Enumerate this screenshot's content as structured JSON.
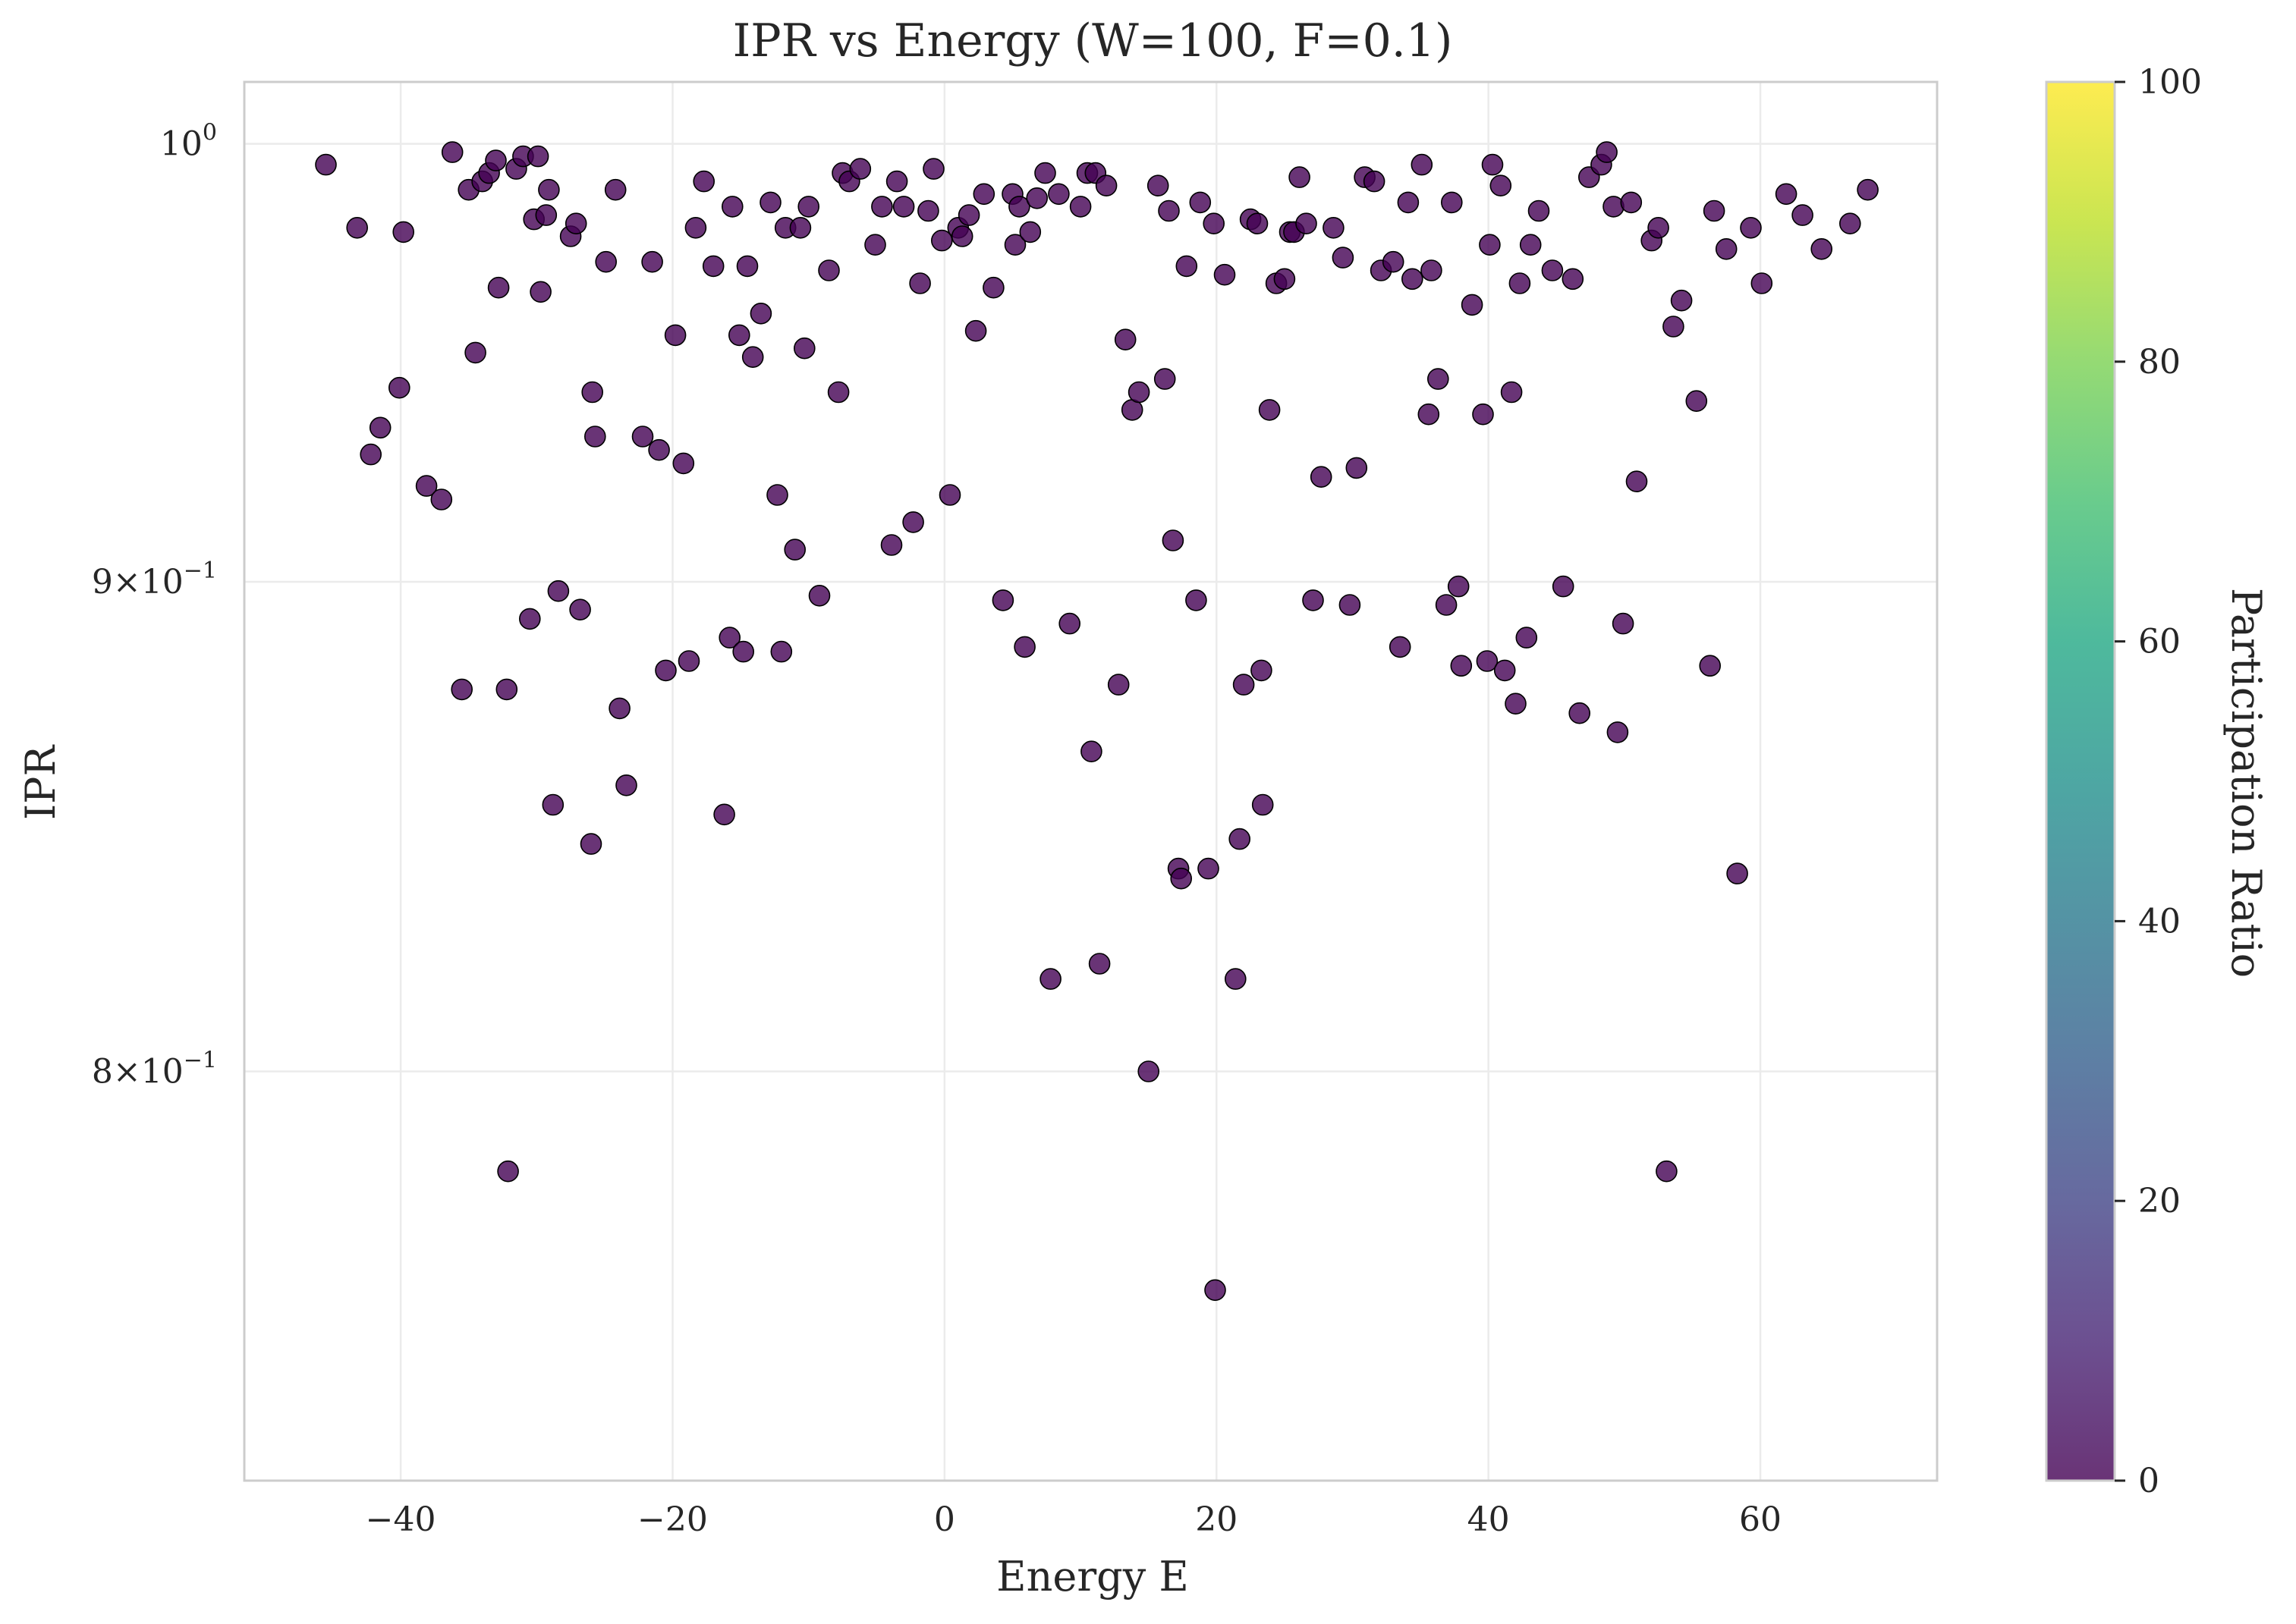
{
  "chart_data": {
    "type": "scatter",
    "title": "IPR vs Energy (W=100, F=0.1)",
    "xlabel": "Energy E",
    "ylabel": "IPR",
    "xlim": [
      -51.5,
      73.0
    ],
    "ylim": [
      0.725,
      1.015
    ],
    "yscale": "log",
    "x_ticks": [
      -40,
      -20,
      0,
      20,
      40,
      60
    ],
    "x_tick_labels": [
      "−40",
      "−20",
      "0",
      "20",
      "40",
      "60"
    ],
    "y_ticks": [
      {
        "value": 1.0,
        "mantissa": "",
        "exponent": "0",
        "base": "10"
      },
      {
        "value": 0.9,
        "mantissa": "9",
        "exponent": "−1",
        "base": "10"
      },
      {
        "value": 0.8,
        "mantissa": "8",
        "exponent": "−1",
        "base": "10"
      }
    ],
    "grid": true,
    "colorbar": {
      "label": "Participation Ratio",
      "range": [
        0,
        100
      ],
      "ticks": [
        0,
        20,
        40,
        60,
        80,
        100
      ],
      "colormap": "viridis"
    },
    "marker_color": "#440154",
    "points": [
      [
        -45.5,
        0.995
      ],
      [
        -43.2,
        0.98
      ],
      [
        -39.8,
        0.979
      ],
      [
        -40.1,
        0.943
      ],
      [
        -41.5,
        0.934
      ],
      [
        -42.2,
        0.928
      ],
      [
        -38.1,
        0.921
      ],
      [
        -37.0,
        0.918
      ],
      [
        -36.2,
        0.998
      ],
      [
        -35.5,
        0.877
      ],
      [
        -35.0,
        0.989
      ],
      [
        -34.5,
        0.951
      ],
      [
        -34.0,
        0.991
      ],
      [
        -33.5,
        0.993
      ],
      [
        -33.0,
        0.996
      ],
      [
        -32.8,
        0.966
      ],
      [
        -32.2,
        0.877
      ],
      [
        -32.1,
        0.781
      ],
      [
        -31.5,
        0.994
      ],
      [
        -31.0,
        0.997
      ],
      [
        -30.5,
        0.892
      ],
      [
        -30.2,
        0.982
      ],
      [
        -29.9,
        0.997
      ],
      [
        -29.7,
        0.965
      ],
      [
        -29.3,
        0.983
      ],
      [
        -29.1,
        0.989
      ],
      [
        -28.8,
        0.853
      ],
      [
        -28.4,
        0.898
      ],
      [
        -27.5,
        0.978
      ],
      [
        -27.1,
        0.981
      ],
      [
        -26.8,
        0.894
      ],
      [
        -25.9,
        0.942
      ],
      [
        -26.0,
        0.845
      ],
      [
        -25.7,
        0.932
      ],
      [
        -24.9,
        0.972
      ],
      [
        -24.2,
        0.989
      ],
      [
        -23.9,
        0.873
      ],
      [
        -23.4,
        0.857
      ],
      [
        -22.2,
        0.932
      ],
      [
        -21.5,
        0.972
      ],
      [
        -21.0,
        0.929
      ],
      [
        -20.5,
        0.881
      ],
      [
        -19.8,
        0.955
      ],
      [
        -19.2,
        0.926
      ],
      [
        -18.8,
        0.883
      ],
      [
        -18.3,
        0.98
      ],
      [
        -17.7,
        0.991
      ],
      [
        -17.0,
        0.971
      ],
      [
        -16.2,
        0.851
      ],
      [
        -15.8,
        0.888
      ],
      [
        -15.6,
        0.985
      ],
      [
        -15.1,
        0.955
      ],
      [
        -14.8,
        0.885
      ],
      [
        -14.5,
        0.971
      ],
      [
        -14.1,
        0.95
      ],
      [
        -13.5,
        0.96
      ],
      [
        -12.8,
        0.986
      ],
      [
        -12.3,
        0.919
      ],
      [
        -12.0,
        0.885
      ],
      [
        -11.7,
        0.98
      ],
      [
        -11.0,
        0.907
      ],
      [
        -10.6,
        0.98
      ],
      [
        -10.3,
        0.952
      ],
      [
        -10.0,
        0.985
      ],
      [
        -9.2,
        0.897
      ],
      [
        -8.5,
        0.97
      ],
      [
        -7.8,
        0.942
      ],
      [
        -7.5,
        0.993
      ],
      [
        -7.0,
        0.991
      ],
      [
        -6.2,
        0.994
      ],
      [
        -5.1,
        0.976
      ],
      [
        -4.6,
        0.985
      ],
      [
        -3.9,
        0.908
      ],
      [
        -3.5,
        0.991
      ],
      [
        -3.0,
        0.985
      ],
      [
        -2.3,
        0.913
      ],
      [
        -1.8,
        0.967
      ],
      [
        -1.2,
        0.984
      ],
      [
        -0.8,
        0.994
      ],
      [
        -0.2,
        0.977
      ],
      [
        0.4,
        0.919
      ],
      [
        1.0,
        0.98
      ],
      [
        1.3,
        0.978
      ],
      [
        1.8,
        0.983
      ],
      [
        2.3,
        0.956
      ],
      [
        2.9,
        0.988
      ],
      [
        3.6,
        0.966
      ],
      [
        4.3,
        0.896
      ],
      [
        5.0,
        0.988
      ],
      [
        5.2,
        0.976
      ],
      [
        5.5,
        0.985
      ],
      [
        5.9,
        0.886
      ],
      [
        6.3,
        0.979
      ],
      [
        6.8,
        0.987
      ],
      [
        7.4,
        0.993
      ],
      [
        7.8,
        0.818
      ],
      [
        8.4,
        0.988
      ],
      [
        9.2,
        0.891
      ],
      [
        10.0,
        0.985
      ],
      [
        10.5,
        0.993
      ],
      [
        10.8,
        0.864
      ],
      [
        11.1,
        0.993
      ],
      [
        11.4,
        0.821
      ],
      [
        11.9,
        0.99
      ],
      [
        12.8,
        0.878
      ],
      [
        13.3,
        0.954
      ],
      [
        13.8,
        0.938
      ],
      [
        14.3,
        0.942
      ],
      [
        15.0,
        0.8
      ],
      [
        15.7,
        0.99
      ],
      [
        16.2,
        0.945
      ],
      [
        16.5,
        0.984
      ],
      [
        16.8,
        0.909
      ],
      [
        17.2,
        0.84
      ],
      [
        17.4,
        0.838
      ],
      [
        17.8,
        0.971
      ],
      [
        18.5,
        0.896
      ],
      [
        18.8,
        0.986
      ],
      [
        19.4,
        0.84
      ],
      [
        19.8,
        0.981
      ],
      [
        19.9,
        0.759
      ],
      [
        20.6,
        0.969
      ],
      [
        21.4,
        0.818
      ],
      [
        21.7,
        0.846
      ],
      [
        22.0,
        0.878
      ],
      [
        22.5,
        0.982
      ],
      [
        23.0,
        0.981
      ],
      [
        23.3,
        0.881
      ],
      [
        23.4,
        0.853
      ],
      [
        23.9,
        0.938
      ],
      [
        24.4,
        0.967
      ],
      [
        25.0,
        0.968
      ],
      [
        25.4,
        0.979
      ],
      [
        25.7,
        0.979
      ],
      [
        26.1,
        0.992
      ],
      [
        26.6,
        0.981
      ],
      [
        27.1,
        0.896
      ],
      [
        27.7,
        0.923
      ],
      [
        28.6,
        0.98
      ],
      [
        29.3,
        0.973
      ],
      [
        29.8,
        0.895
      ],
      [
        30.3,
        0.925
      ],
      [
        30.9,
        0.992
      ],
      [
        31.6,
        0.991
      ],
      [
        32.1,
        0.97
      ],
      [
        33.0,
        0.972
      ],
      [
        33.5,
        0.886
      ],
      [
        34.1,
        0.986
      ],
      [
        34.4,
        0.968
      ],
      [
        35.1,
        0.995
      ],
      [
        35.6,
        0.937
      ],
      [
        35.8,
        0.97
      ],
      [
        36.3,
        0.945
      ],
      [
        36.9,
        0.895
      ],
      [
        37.3,
        0.986
      ],
      [
        37.8,
        0.899
      ],
      [
        38.0,
        0.882
      ],
      [
        38.8,
        0.962
      ],
      [
        39.6,
        0.937
      ],
      [
        39.9,
        0.883
      ],
      [
        40.1,
        0.976
      ],
      [
        40.3,
        0.995
      ],
      [
        40.9,
        0.99
      ],
      [
        41.2,
        0.881
      ],
      [
        41.7,
        0.942
      ],
      [
        42.0,
        0.874
      ],
      [
        42.3,
        0.967
      ],
      [
        42.8,
        0.888
      ],
      [
        43.1,
        0.976
      ],
      [
        43.7,
        0.984
      ],
      [
        44.7,
        0.97
      ],
      [
        45.5,
        0.899
      ],
      [
        46.2,
        0.968
      ],
      [
        46.7,
        0.872
      ],
      [
        47.4,
        0.992
      ],
      [
        48.3,
        0.995
      ],
      [
        48.7,
        0.998
      ],
      [
        49.2,
        0.985
      ],
      [
        49.5,
        0.868
      ],
      [
        49.9,
        0.891
      ],
      [
        50.5,
        0.986
      ],
      [
        50.9,
        0.922
      ],
      [
        52.0,
        0.977
      ],
      [
        52.5,
        0.98
      ],
      [
        53.1,
        0.781
      ],
      [
        53.6,
        0.957
      ],
      [
        54.2,
        0.963
      ],
      [
        55.3,
        0.94
      ],
      [
        56.3,
        0.882
      ],
      [
        56.6,
        0.984
      ],
      [
        57.5,
        0.975
      ],
      [
        58.3,
        0.839
      ],
      [
        59.3,
        0.98
      ],
      [
        60.1,
        0.967
      ],
      [
        61.9,
        0.988
      ],
      [
        63.1,
        0.983
      ],
      [
        64.5,
        0.975
      ],
      [
        66.6,
        0.981
      ],
      [
        67.9,
        0.989
      ]
    ]
  }
}
